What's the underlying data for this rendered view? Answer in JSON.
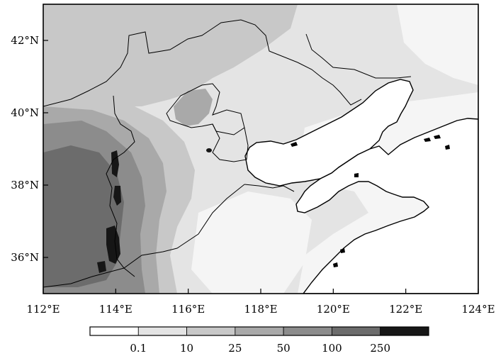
{
  "map": {
    "lon_range": [
      112,
      124
    ],
    "lat_range": [
      35,
      43
    ],
    "x_ticks": [
      {
        "lon": 112,
        "label": "112°E"
      },
      {
        "lon": 114,
        "label": "114°E"
      },
      {
        "lon": 116,
        "label": "116°E"
      },
      {
        "lon": 118,
        "label": "118°E"
      },
      {
        "lon": 120,
        "label": "120°E"
      },
      {
        "lon": 122,
        "label": "122°E"
      },
      {
        "lon": 124,
        "label": "124°E"
      }
    ],
    "y_ticks": [
      {
        "lat": 36,
        "label": "36°N"
      },
      {
        "lat": 38,
        "label": "38°N"
      },
      {
        "lat": 40,
        "label": "40°N"
      },
      {
        "lat": 42,
        "label": "42°N"
      }
    ]
  },
  "colorbar": {
    "labels": [
      "0.1",
      "10",
      "25",
      "50",
      "100",
      "250"
    ],
    "colors": [
      "#ffffff",
      "#e4e4e4",
      "#c8c8c8",
      "#a9a9a9",
      "#8c8c8c",
      "#6c6c6c",
      "#161616"
    ]
  },
  "colors": {
    "sea": "#ffffff",
    "boundary": "#000000"
  }
}
